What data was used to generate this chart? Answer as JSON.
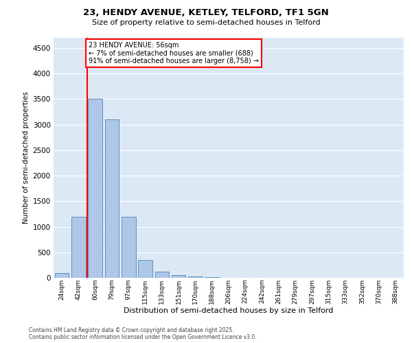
{
  "title_line1": "23, HENDY AVENUE, KETLEY, TELFORD, TF1 5GN",
  "title_line2": "Size of property relative to semi-detached houses in Telford",
  "xlabel": "Distribution of semi-detached houses by size in Telford",
  "ylabel": "Number of semi-detached properties",
  "categories": [
    "24sqm",
    "42sqm",
    "60sqm",
    "79sqm",
    "97sqm",
    "115sqm",
    "133sqm",
    "151sqm",
    "170sqm",
    "188sqm",
    "206sqm",
    "224sqm",
    "242sqm",
    "261sqm",
    "279sqm",
    "297sqm",
    "315sqm",
    "333sqm",
    "352sqm",
    "370sqm",
    "388sqm"
  ],
  "values": [
    100,
    1200,
    3500,
    3100,
    1200,
    350,
    120,
    60,
    30,
    10,
    5,
    2,
    1,
    0,
    0,
    0,
    0,
    0,
    0,
    0,
    0
  ],
  "bar_color": "#aec6e8",
  "bar_edge_color": "#5a90bf",
  "annotation_text": "23 HENDY AVENUE: 56sqm\n← 7% of semi-detached houses are smaller (688)\n91% of semi-detached houses are larger (8,758) →",
  "vline_x_index": 1.5,
  "ylim": [
    0,
    4700
  ],
  "yticks": [
    0,
    500,
    1000,
    1500,
    2000,
    2500,
    3000,
    3500,
    4000,
    4500
  ],
  "bg_color": "#dce9f5",
  "grid_color": "#c8d8ec",
  "footer_line1": "Contains HM Land Registry data © Crown copyright and database right 2025.",
  "footer_line2": "Contains public sector information licensed under the Open Government Licence v3.0."
}
